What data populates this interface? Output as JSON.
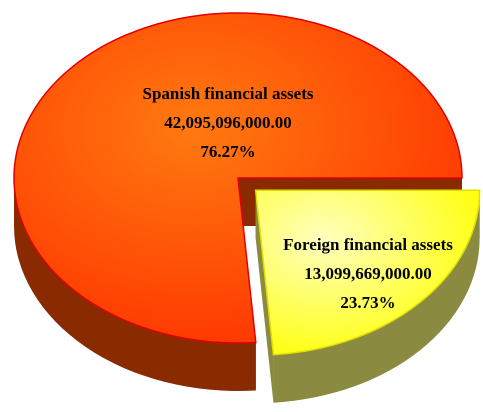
{
  "chart_data": {
    "type": "pie",
    "categories": [
      "Spanish financial assets",
      "Foreign financial assets"
    ],
    "values": [
      42095096000.0,
      13099669000.0
    ],
    "value_labels": [
      "42,095,096,000.00",
      "13,099,669,000.00"
    ],
    "shares": [
      76.27,
      23.73
    ],
    "share_labels": [
      "76.27%",
      "23.73%"
    ],
    "colors": [
      "#ff5a00",
      "#ffff40"
    ],
    "explode": [
      false,
      true
    ]
  }
}
